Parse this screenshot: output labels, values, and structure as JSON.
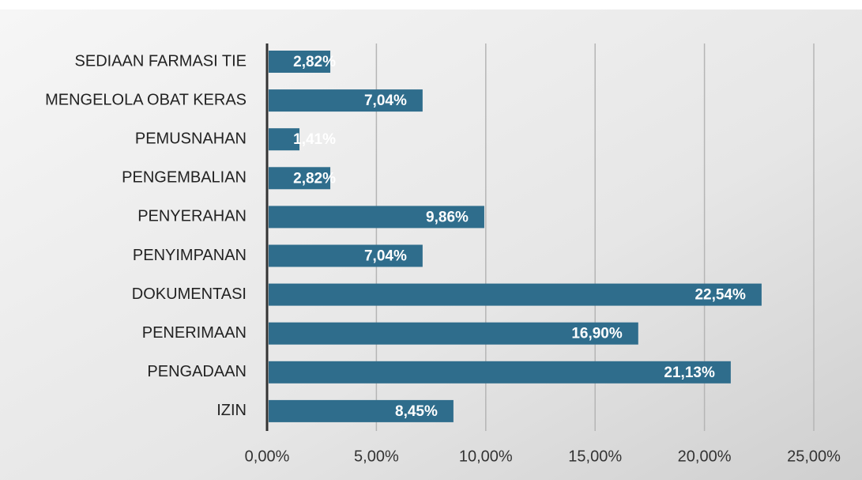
{
  "chart_data": {
    "type": "bar",
    "orientation": "horizontal",
    "categories": [
      "SEDIAAN FARMASI TIE",
      "MENGELOLA OBAT KERAS",
      "PEMUSNAHAN",
      "PENGEMBALIAN",
      "PENYERAHAN",
      "PENYIMPANAN",
      "DOKUMENTASI",
      "PENERIMAAN",
      "PENGADAAN",
      "IZIN"
    ],
    "values": [
      2.82,
      7.04,
      1.41,
      2.82,
      9.86,
      7.04,
      22.54,
      16.9,
      21.13,
      8.45
    ],
    "value_labels": [
      "2,82%",
      "7,04%",
      "1,41%",
      "2,82%",
      "9,86%",
      "7,04%",
      "22,54%",
      "16,90%",
      "21,13%",
      "8,45%"
    ],
    "color": "#2f6d8c",
    "xlim": [
      0,
      25
    ],
    "xticks": [
      {
        "value": 0,
        "label": "0,00%"
      },
      {
        "value": 5,
        "label": "5,00%"
      },
      {
        "value": 10,
        "label": "10,00%"
      },
      {
        "value": 15,
        "label": "15,00%"
      },
      {
        "value": 20,
        "label": "20,00%"
      },
      {
        "value": 25,
        "label": "25,00%"
      }
    ],
    "grid": true
  }
}
